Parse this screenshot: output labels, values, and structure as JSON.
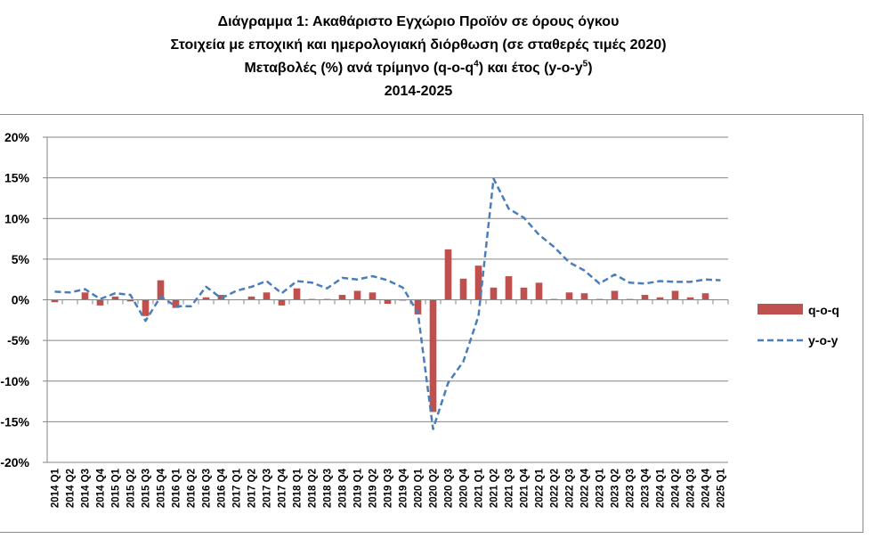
{
  "title": {
    "line1": "Διάγραμμα 1: Ακαθάριστο Εγχώριο Προϊόν σε όρους όγκου",
    "line2": "Στοιχεία με εποχική και ημερολογιακή διόρθωση (σε σταθερές τιμές 2020)",
    "line3_pre": "Μεταβολές (%) ανά τρίμηνο (q-o-q",
    "line3_sup1": "4",
    "line3_mid": ") και έτος (y-o-y",
    "line3_sup2": "5",
    "line3_post": ")",
    "line4": "2014-2025"
  },
  "colors": {
    "bar": "#c0504d",
    "line": "#4a7ebb",
    "grid": "#868686"
  },
  "chart_data": {
    "type": "bar",
    "categories": [
      "2014 Q1",
      "2014 Q2",
      "2014 Q3",
      "2014 Q4",
      "2015 Q1",
      "2015 Q2",
      "2015 Q3",
      "2015 Q4",
      "2016 Q1",
      "2016 Q2",
      "2016 Q3",
      "2016 Q4",
      "2017 Q1",
      "2017 Q2",
      "2017 Q3",
      "2017 Q4",
      "2018 Q1",
      "2018 Q2",
      "2018 Q3",
      "2018 Q4",
      "2019 Q1",
      "2019 Q2",
      "2019 Q3",
      "2019 Q4",
      "2020 Q1",
      "2020 Q2",
      "2020 Q3",
      "2020 Q4",
      "2021 Q1",
      "2021 Q2",
      "2021 Q3",
      "2021 Q4",
      "2022 Q1",
      "2022 Q2",
      "2022 Q3",
      "2022 Q4",
      "2023 Q1",
      "2023 Q2",
      "2023 Q3",
      "2023 Q4",
      "2024 Q1",
      "2024 Q2",
      "2024 Q3",
      "2024 Q4",
      "2025 Q1"
    ],
    "series": [
      {
        "name": "q-o-q",
        "type": "bar",
        "values": [
          -0.3,
          0.0,
          0.9,
          -0.7,
          0.4,
          -0.2,
          -2.0,
          2.4,
          -1.0,
          0.0,
          0.3,
          0.6,
          0.0,
          0.4,
          0.9,
          -0.7,
          1.4,
          0.1,
          0.1,
          0.6,
          1.1,
          0.9,
          -0.5,
          -0.1,
          -1.8,
          -13.8,
          6.2,
          2.6,
          4.2,
          1.5,
          2.9,
          1.5,
          2.1,
          0.1,
          0.9,
          0.8,
          0.1,
          1.1,
          0.1,
          0.6,
          0.3,
          1.1,
          0.3,
          0.8,
          0.0
        ]
      },
      {
        "name": "y-o-y",
        "type": "line",
        "values": [
          1.0,
          0.9,
          1.3,
          0.1,
          0.8,
          0.6,
          -2.6,
          0.4,
          -0.8,
          -0.8,
          1.6,
          0.2,
          1.1,
          1.6,
          2.3,
          0.8,
          2.3,
          2.1,
          1.4,
          2.7,
          2.5,
          2.9,
          2.4,
          1.5,
          -1.6,
          -15.9,
          -10.2,
          -7.6,
          -2.0,
          14.9,
          11.2,
          10.1,
          8.0,
          6.5,
          4.6,
          3.6,
          2.0,
          3.1,
          2.1,
          2.0,
          2.3,
          2.2,
          2.2,
          2.5,
          2.4
        ]
      }
    ],
    "ylim": [
      -20,
      20
    ],
    "yticks": [
      -20,
      -15,
      -10,
      -5,
      0,
      5,
      10,
      15,
      20
    ],
    "ytick_labels": [
      "-20%",
      "-15%",
      "-10%",
      "-5%",
      "0%",
      "5%",
      "10%",
      "15%",
      "20%"
    ],
    "grid": true,
    "legend_position": "right"
  }
}
